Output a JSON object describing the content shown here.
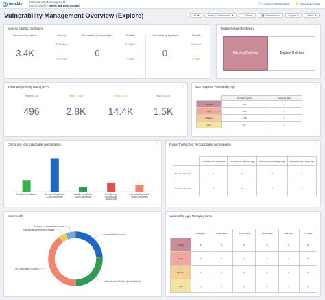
{
  "app": {
    "logo_text": "tenable",
    "product": "Vulnerability Management",
    "breadcrumb_parent": "Dashboards",
    "breadcrumb_sep": " › ",
    "breadcrumb_current": "Selected Dashboard",
    "license_info": "License Information",
    "quick_actions": "Quick Actions"
  },
  "page": {
    "title": "Vulnerability Management Overview (Explore)",
    "controls": {
      "filter": "All",
      "jump": "Jump to Dashboard",
      "share": "Share",
      "dashboards": "Dashboards",
      "export": "Export",
      "more": "More"
    }
  },
  "severity_stats": {
    "title": "Severity Statistics by Source",
    "columns": [
      {
        "header": "Discovered by Nessus",
        "value": "3.4K",
        "sev_header": "Severity",
        "critical": "523 Critical",
        "high": "2.9K High"
      },
      {
        "header": "Discovered by Nessus Agent",
        "value": "0",
        "sev_header": "Severity",
        "critical": "0 Critical",
        "high": "0 High"
      },
      {
        "header": "Discovered by Agentless",
        "value": "0",
        "sev_header": "Severity",
        "critical": "0 Critical",
        "high": "0 High"
      }
    ]
  },
  "research_advisory": {
    "title": "Tenable Research Advisory",
    "missing": "Missing Patches",
    "applied": "Applied Patches"
  },
  "vpr": {
    "title": "Vulnerability Priority Rating (VPR)",
    "items": [
      {
        "label": "Rating 9.0-10",
        "value": "496",
        "color": "#d23c3c"
      },
      {
        "label": "Rating 7.0-8.9",
        "value": "2.8K",
        "color": "#e0841f"
      },
      {
        "label": "Rating 4.0-6.9",
        "value": "14.4K",
        "color": "#e0a13a"
      },
      {
        "label": "Rating 0.1-3.9",
        "value": "1.5K",
        "color": "#2f9b54"
      }
    ]
  },
  "sla": {
    "title": "SLA Progress: Vulnerability Age",
    "headers": [
      "Not Meeting SLA",
      "Meeting SLA"
    ],
    "rows": [
      {
        "label": "Critical",
        "a": "180",
        "b": "0",
        "color": "#c98b97"
      },
      {
        "label": "High",
        "a": "11.4",
        "b": "0",
        "color": "#f1a79a"
      },
      {
        "label": "Medium",
        "a": "2.6K",
        "b": "0",
        "color": "#f6cf96"
      },
      {
        "label": "Low",
        "a": "19",
        "b": "0",
        "color": "#f4e3a3"
      }
    ]
  },
  "exploitable": {
    "title": "Critical and High Exploitable Vulnerabilities",
    "chart_data": {
      "type": "bar",
      "categories": [
        "Exploited by Malware",
        "Remotely Exploitable (Low Complexity)",
        "Locally Exploitable (Low Complexity)",
        "Exploited by Frameworks (Metasploit)",
        "Remotely Exploitable (High Complexity)"
      ],
      "values": [
        270,
        780,
        110,
        210,
        155
      ],
      "colors": [
        "#3bb04e",
        "#1f67c4",
        "#2f9b54",
        "#d9534f",
        "#f0846c"
      ],
      "ylim": [
        0,
        900
      ]
    }
  },
  "future_threats": {
    "title": "Future Threats: Not Yet Exploitable Vulnerabilities",
    "headers": [
      "Published 0-30 Days Ago",
      "Published 31-90 Days Ago",
      "Published 91-180 Days Ago",
      "Published 180+ Days Ago"
    ],
    "rows": [
      {
        "label": "Proof of Concept",
        "values": [
          "0",
          "0",
          "0",
          "6"
        ]
      },
      {
        "label": "Unproven Exploit",
        "values": [
          "0",
          "0",
          "0",
          "0"
        ]
      }
    ]
  },
  "scan_health": {
    "title": "Scan Health",
    "chart_data": {
      "type": "pie",
      "labels": [
        "Success and Intermittent Failure",
        "Success but Insufficient Access",
        "Authentication Success",
        "Authentication Failure (Credentialed)",
        "No Credentials Provided"
      ],
      "values": [
        4,
        6,
        24,
        26,
        40
      ],
      "colors": [
        "#e7d14b",
        "#7aa6dc",
        "#1f67c4",
        "#2f9b54",
        "#f0846c"
      ]
    }
  },
  "vuln_age": {
    "title": "Vulnerability Age: Managing SLAs",
    "headers": [
      "90+ Days",
      "61-90 Days",
      "31-60 Days",
      "15-30 Days",
      "8-14 Days",
      "0-7 Days"
    ],
    "rows": [
      {
        "label": "Critical",
        "values": [
          "9",
          "0",
          "0",
          "0",
          "0",
          "0"
        ],
        "color": "#c98b97"
      },
      {
        "label": "High",
        "values": [
          "0",
          "0",
          "0",
          "0",
          "0",
          "0"
        ],
        "color": "#f1a79a"
      },
      {
        "label": "Medium",
        "values": [
          "0",
          "0",
          "0",
          "0",
          "0",
          "0"
        ],
        "color": "#f6cf96"
      },
      {
        "label": "Low",
        "values": [
          "0",
          "0",
          "0",
          "0",
          "0",
          "0"
        ],
        "color": "#f4e3a3"
      }
    ]
  }
}
